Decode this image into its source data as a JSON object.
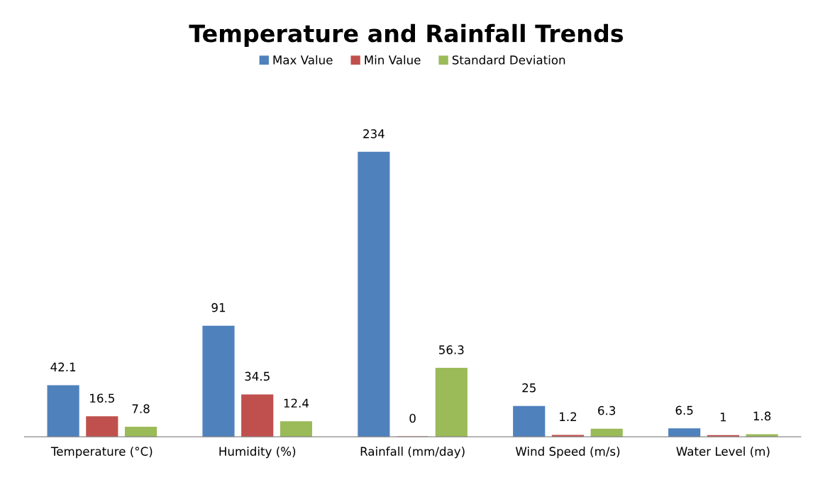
{
  "chart_data": {
    "type": "bar",
    "title": "Temperature and Rainfall Trends",
    "categories": [
      "Temperature (°C)",
      "Humidity (%)",
      "Rainfall (mm/day)",
      "Wind Speed (m/s)",
      "Water Level (m)"
    ],
    "series": [
      {
        "name": "Max Value",
        "color": "#4f81bd",
        "values": [
          42.1,
          91,
          234,
          25,
          6.5
        ]
      },
      {
        "name": "Min Value",
        "color": "#c0504d",
        "values": [
          16.5,
          34.5,
          0,
          1.2,
          1
        ]
      },
      {
        "name": "Standard Deviation",
        "color": "#9bbb59",
        "values": [
          7.8,
          12.4,
          56.3,
          6.3,
          1.8
        ]
      }
    ],
    "data_labels": true,
    "legend": "top",
    "grid": false
  }
}
